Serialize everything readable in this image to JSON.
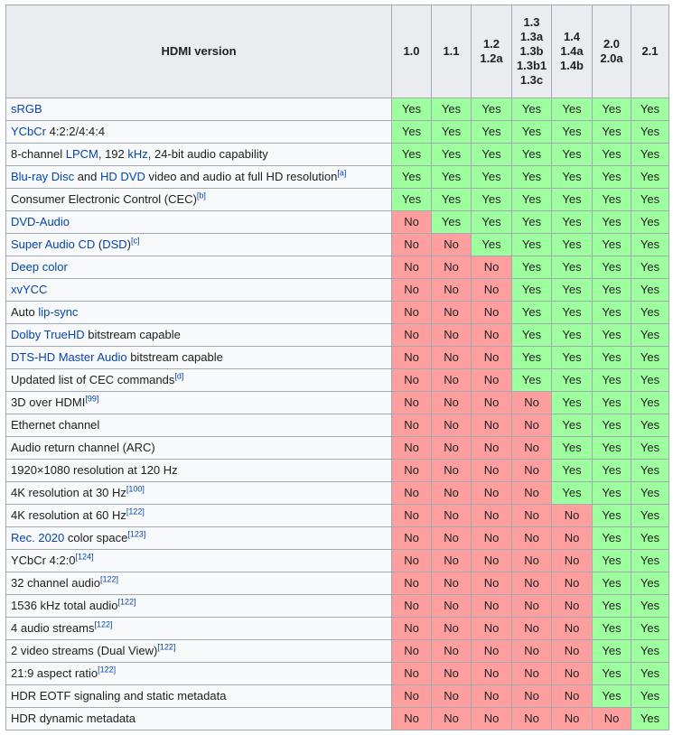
{
  "header": {
    "feature_title": "HDMI version",
    "versions": [
      [
        "1.0"
      ],
      [
        "1.1"
      ],
      [
        "1.2",
        "1.2a"
      ],
      [
        "1.3",
        "1.3a",
        "1.3b",
        "1.3b1",
        "1.3c"
      ],
      [
        "1.4",
        "1.4a",
        "1.4b"
      ],
      [
        "2.0",
        "2.0a"
      ],
      [
        "2.1"
      ]
    ]
  },
  "colors": {
    "yes": "#9EFF9E",
    "no": "#FF9E9E",
    "link": "#0645ad",
    "header_bg": "#eaecf0",
    "border": "#a2a9b1"
  },
  "rows": [
    {
      "parts": [
        {
          "t": "sRGB",
          "link": true
        }
      ],
      "values": [
        "Yes",
        "Yes",
        "Yes",
        "Yes",
        "Yes",
        "Yes",
        "Yes"
      ]
    },
    {
      "parts": [
        {
          "t": "YCbCr",
          "link": true
        },
        {
          "t": " 4:2:2/4:4:4"
        }
      ],
      "values": [
        "Yes",
        "Yes",
        "Yes",
        "Yes",
        "Yes",
        "Yes",
        "Yes"
      ]
    },
    {
      "parts": [
        {
          "t": "8-channel "
        },
        {
          "t": "LPCM",
          "link": true
        },
        {
          "t": ", 192 "
        },
        {
          "t": "kHz",
          "link": true
        },
        {
          "t": ", 24-bit audio capability"
        }
      ],
      "values": [
        "Yes",
        "Yes",
        "Yes",
        "Yes",
        "Yes",
        "Yes",
        "Yes"
      ]
    },
    {
      "parts": [
        {
          "t": "Blu-ray Disc",
          "link": true
        },
        {
          "t": " and "
        },
        {
          "t": "HD DVD",
          "link": true
        },
        {
          "t": " video and audio at full HD resolution"
        },
        {
          "t": "[a]",
          "sup": true
        }
      ],
      "values": [
        "Yes",
        "Yes",
        "Yes",
        "Yes",
        "Yes",
        "Yes",
        "Yes"
      ]
    },
    {
      "parts": [
        {
          "t": "Consumer Electronic Control (CEC)"
        },
        {
          "t": "[b]",
          "sup": true
        }
      ],
      "values": [
        "Yes",
        "Yes",
        "Yes",
        "Yes",
        "Yes",
        "Yes",
        "Yes"
      ]
    },
    {
      "parts": [
        {
          "t": "DVD-Audio",
          "link": true
        }
      ],
      "values": [
        "No",
        "Yes",
        "Yes",
        "Yes",
        "Yes",
        "Yes",
        "Yes"
      ]
    },
    {
      "parts": [
        {
          "t": "Super Audio CD",
          "link": true
        },
        {
          "t": " ("
        },
        {
          "t": "DSD",
          "link": true
        },
        {
          "t": ")"
        },
        {
          "t": "[c]",
          "sup": true
        }
      ],
      "values": [
        "No",
        "No",
        "Yes",
        "Yes",
        "Yes",
        "Yes",
        "Yes"
      ]
    },
    {
      "parts": [
        {
          "t": "Deep color",
          "link": true
        }
      ],
      "values": [
        "No",
        "No",
        "No",
        "Yes",
        "Yes",
        "Yes",
        "Yes"
      ]
    },
    {
      "parts": [
        {
          "t": "xvYCC",
          "link": true
        }
      ],
      "values": [
        "No",
        "No",
        "No",
        "Yes",
        "Yes",
        "Yes",
        "Yes"
      ]
    },
    {
      "parts": [
        {
          "t": "Auto "
        },
        {
          "t": "lip-sync",
          "link": true
        }
      ],
      "values": [
        "No",
        "No",
        "No",
        "Yes",
        "Yes",
        "Yes",
        "Yes"
      ]
    },
    {
      "parts": [
        {
          "t": "Dolby TrueHD",
          "link": true
        },
        {
          "t": " bitstream capable"
        }
      ],
      "values": [
        "No",
        "No",
        "No",
        "Yes",
        "Yes",
        "Yes",
        "Yes"
      ]
    },
    {
      "parts": [
        {
          "t": "DTS-HD Master Audio",
          "link": true
        },
        {
          "t": " bitstream capable"
        }
      ],
      "values": [
        "No",
        "No",
        "No",
        "Yes",
        "Yes",
        "Yes",
        "Yes"
      ]
    },
    {
      "parts": [
        {
          "t": "Updated list of CEC commands"
        },
        {
          "t": "[d]",
          "sup": true
        }
      ],
      "values": [
        "No",
        "No",
        "No",
        "Yes",
        "Yes",
        "Yes",
        "Yes"
      ]
    },
    {
      "parts": [
        {
          "t": "3D over HDMI"
        },
        {
          "t": "[99]",
          "sup": true
        }
      ],
      "values": [
        "No",
        "No",
        "No",
        "No",
        "Yes",
        "Yes",
        "Yes"
      ]
    },
    {
      "parts": [
        {
          "t": "Ethernet channel"
        }
      ],
      "values": [
        "No",
        "No",
        "No",
        "No",
        "Yes",
        "Yes",
        "Yes"
      ]
    },
    {
      "parts": [
        {
          "t": "Audio return channel (ARC)"
        }
      ],
      "values": [
        "No",
        "No",
        "No",
        "No",
        "Yes",
        "Yes",
        "Yes"
      ]
    },
    {
      "parts": [
        {
          "t": "1920×1080 resolution at 120 Hz"
        }
      ],
      "values": [
        "No",
        "No",
        "No",
        "No",
        "Yes",
        "Yes",
        "Yes"
      ]
    },
    {
      "parts": [
        {
          "t": "4K resolution at 30 Hz"
        },
        {
          "t": "[100]",
          "sup": true
        }
      ],
      "values": [
        "No",
        "No",
        "No",
        "No",
        "Yes",
        "Yes",
        "Yes"
      ]
    },
    {
      "parts": [
        {
          "t": "4K resolution at 60 Hz"
        },
        {
          "t": "[122]",
          "sup": true
        }
      ],
      "values": [
        "No",
        "No",
        "No",
        "No",
        "No",
        "Yes",
        "Yes"
      ]
    },
    {
      "parts": [
        {
          "t": "Rec. 2020",
          "link": true
        },
        {
          "t": " color space"
        },
        {
          "t": "[123]",
          "sup": true
        }
      ],
      "values": [
        "No",
        "No",
        "No",
        "No",
        "No",
        "Yes",
        "Yes"
      ]
    },
    {
      "parts": [
        {
          "t": "YCbCr 4:2:0"
        },
        {
          "t": "[124]",
          "sup": true
        }
      ],
      "values": [
        "No",
        "No",
        "No",
        "No",
        "No",
        "Yes",
        "Yes"
      ]
    },
    {
      "parts": [
        {
          "t": "32 channel audio"
        },
        {
          "t": "[122]",
          "sup": true
        }
      ],
      "values": [
        "No",
        "No",
        "No",
        "No",
        "No",
        "Yes",
        "Yes"
      ]
    },
    {
      "parts": [
        {
          "t": "1536 kHz total audio"
        },
        {
          "t": "[122]",
          "sup": true
        }
      ],
      "values": [
        "No",
        "No",
        "No",
        "No",
        "No",
        "Yes",
        "Yes"
      ]
    },
    {
      "parts": [
        {
          "t": "4 audio streams"
        },
        {
          "t": "[122]",
          "sup": true
        }
      ],
      "values": [
        "No",
        "No",
        "No",
        "No",
        "No",
        "Yes",
        "Yes"
      ]
    },
    {
      "parts": [
        {
          "t": "2 video streams (Dual View)"
        },
        {
          "t": "[122]",
          "sup": true
        }
      ],
      "values": [
        "No",
        "No",
        "No",
        "No",
        "No",
        "Yes",
        "Yes"
      ]
    },
    {
      "parts": [
        {
          "t": "21:9 aspect ratio"
        },
        {
          "t": "[122]",
          "sup": true
        }
      ],
      "values": [
        "No",
        "No",
        "No",
        "No",
        "No",
        "Yes",
        "Yes"
      ]
    },
    {
      "parts": [
        {
          "t": "HDR EOTF signaling and static metadata"
        }
      ],
      "values": [
        "No",
        "No",
        "No",
        "No",
        "No",
        "Yes",
        "Yes"
      ]
    },
    {
      "parts": [
        {
          "t": "HDR dynamic metadata"
        }
      ],
      "values": [
        "No",
        "No",
        "No",
        "No",
        "No",
        "No",
        "Yes"
      ]
    }
  ]
}
